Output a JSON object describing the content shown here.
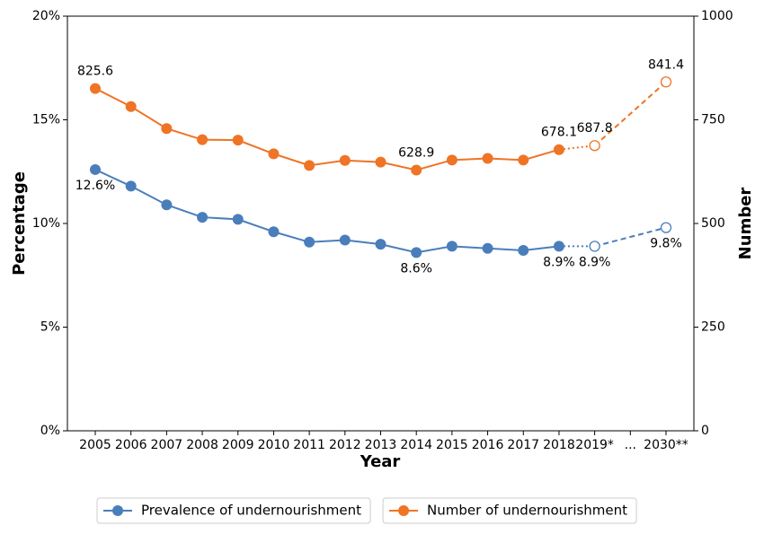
{
  "chart_data": {
    "type": "line",
    "x_label": "Year",
    "y_label": "Percentage",
    "y2_label": "Number",
    "categories": [
      "2005",
      "2006",
      "2007",
      "2008",
      "2009",
      "2010",
      "2011",
      "2012",
      "2013",
      "2014",
      "2015",
      "2016",
      "2017",
      "2018",
      "2019*",
      "...",
      "2030**"
    ],
    "ylim": [
      0,
      20
    ],
    "yticks": [
      {
        "value": 0,
        "label": "0%"
      },
      {
        "value": 5,
        "label": "5%"
      },
      {
        "value": 10,
        "label": "10%"
      },
      {
        "value": 15,
        "label": "15%"
      },
      {
        "value": 20,
        "label": "20%"
      }
    ],
    "y2lim": [
      0,
      1000
    ],
    "y2ticks": [
      0,
      250,
      500,
      750,
      1000
    ],
    "legend": "bottom",
    "styles": [
      "solid",
      "solid",
      "solid",
      "solid",
      "solid",
      "solid",
      "solid",
      "solid",
      "solid",
      "solid",
      "solid",
      "solid",
      "solid",
      "solid",
      "dotted",
      null,
      "dashed"
    ],
    "series": [
      {
        "name": "Prevalence of undernourishment",
        "color": "#4a7ebb",
        "label_position": "below",
        "values": [
          12.6,
          11.8,
          10.9,
          10.3,
          10.2,
          9.6,
          9.1,
          9.2,
          9.0,
          8.6,
          8.9,
          8.8,
          8.7,
          8.9,
          8.9,
          null,
          9.8
        ],
        "value_labels": [
          "12.6%",
          null,
          null,
          null,
          null,
          null,
          null,
          null,
          null,
          "8.6%",
          null,
          null,
          null,
          "8.9%",
          "8.9%",
          null,
          "9.8%"
        ]
      },
      {
        "name": "Number of undernourishment",
        "color": "#ef7425",
        "axis": "y2",
        "label_position": "above",
        "values": [
          825.6,
          782,
          729,
          702,
          701,
          668,
          640,
          652,
          648,
          628.9,
          653,
          657,
          653,
          678.1,
          687.8,
          null,
          841.4
        ],
        "value_labels": [
          "825.6",
          null,
          null,
          null,
          null,
          null,
          null,
          null,
          null,
          "628.9",
          null,
          null,
          null,
          "678.1",
          "687.8",
          null,
          "841.4"
        ]
      }
    ]
  }
}
